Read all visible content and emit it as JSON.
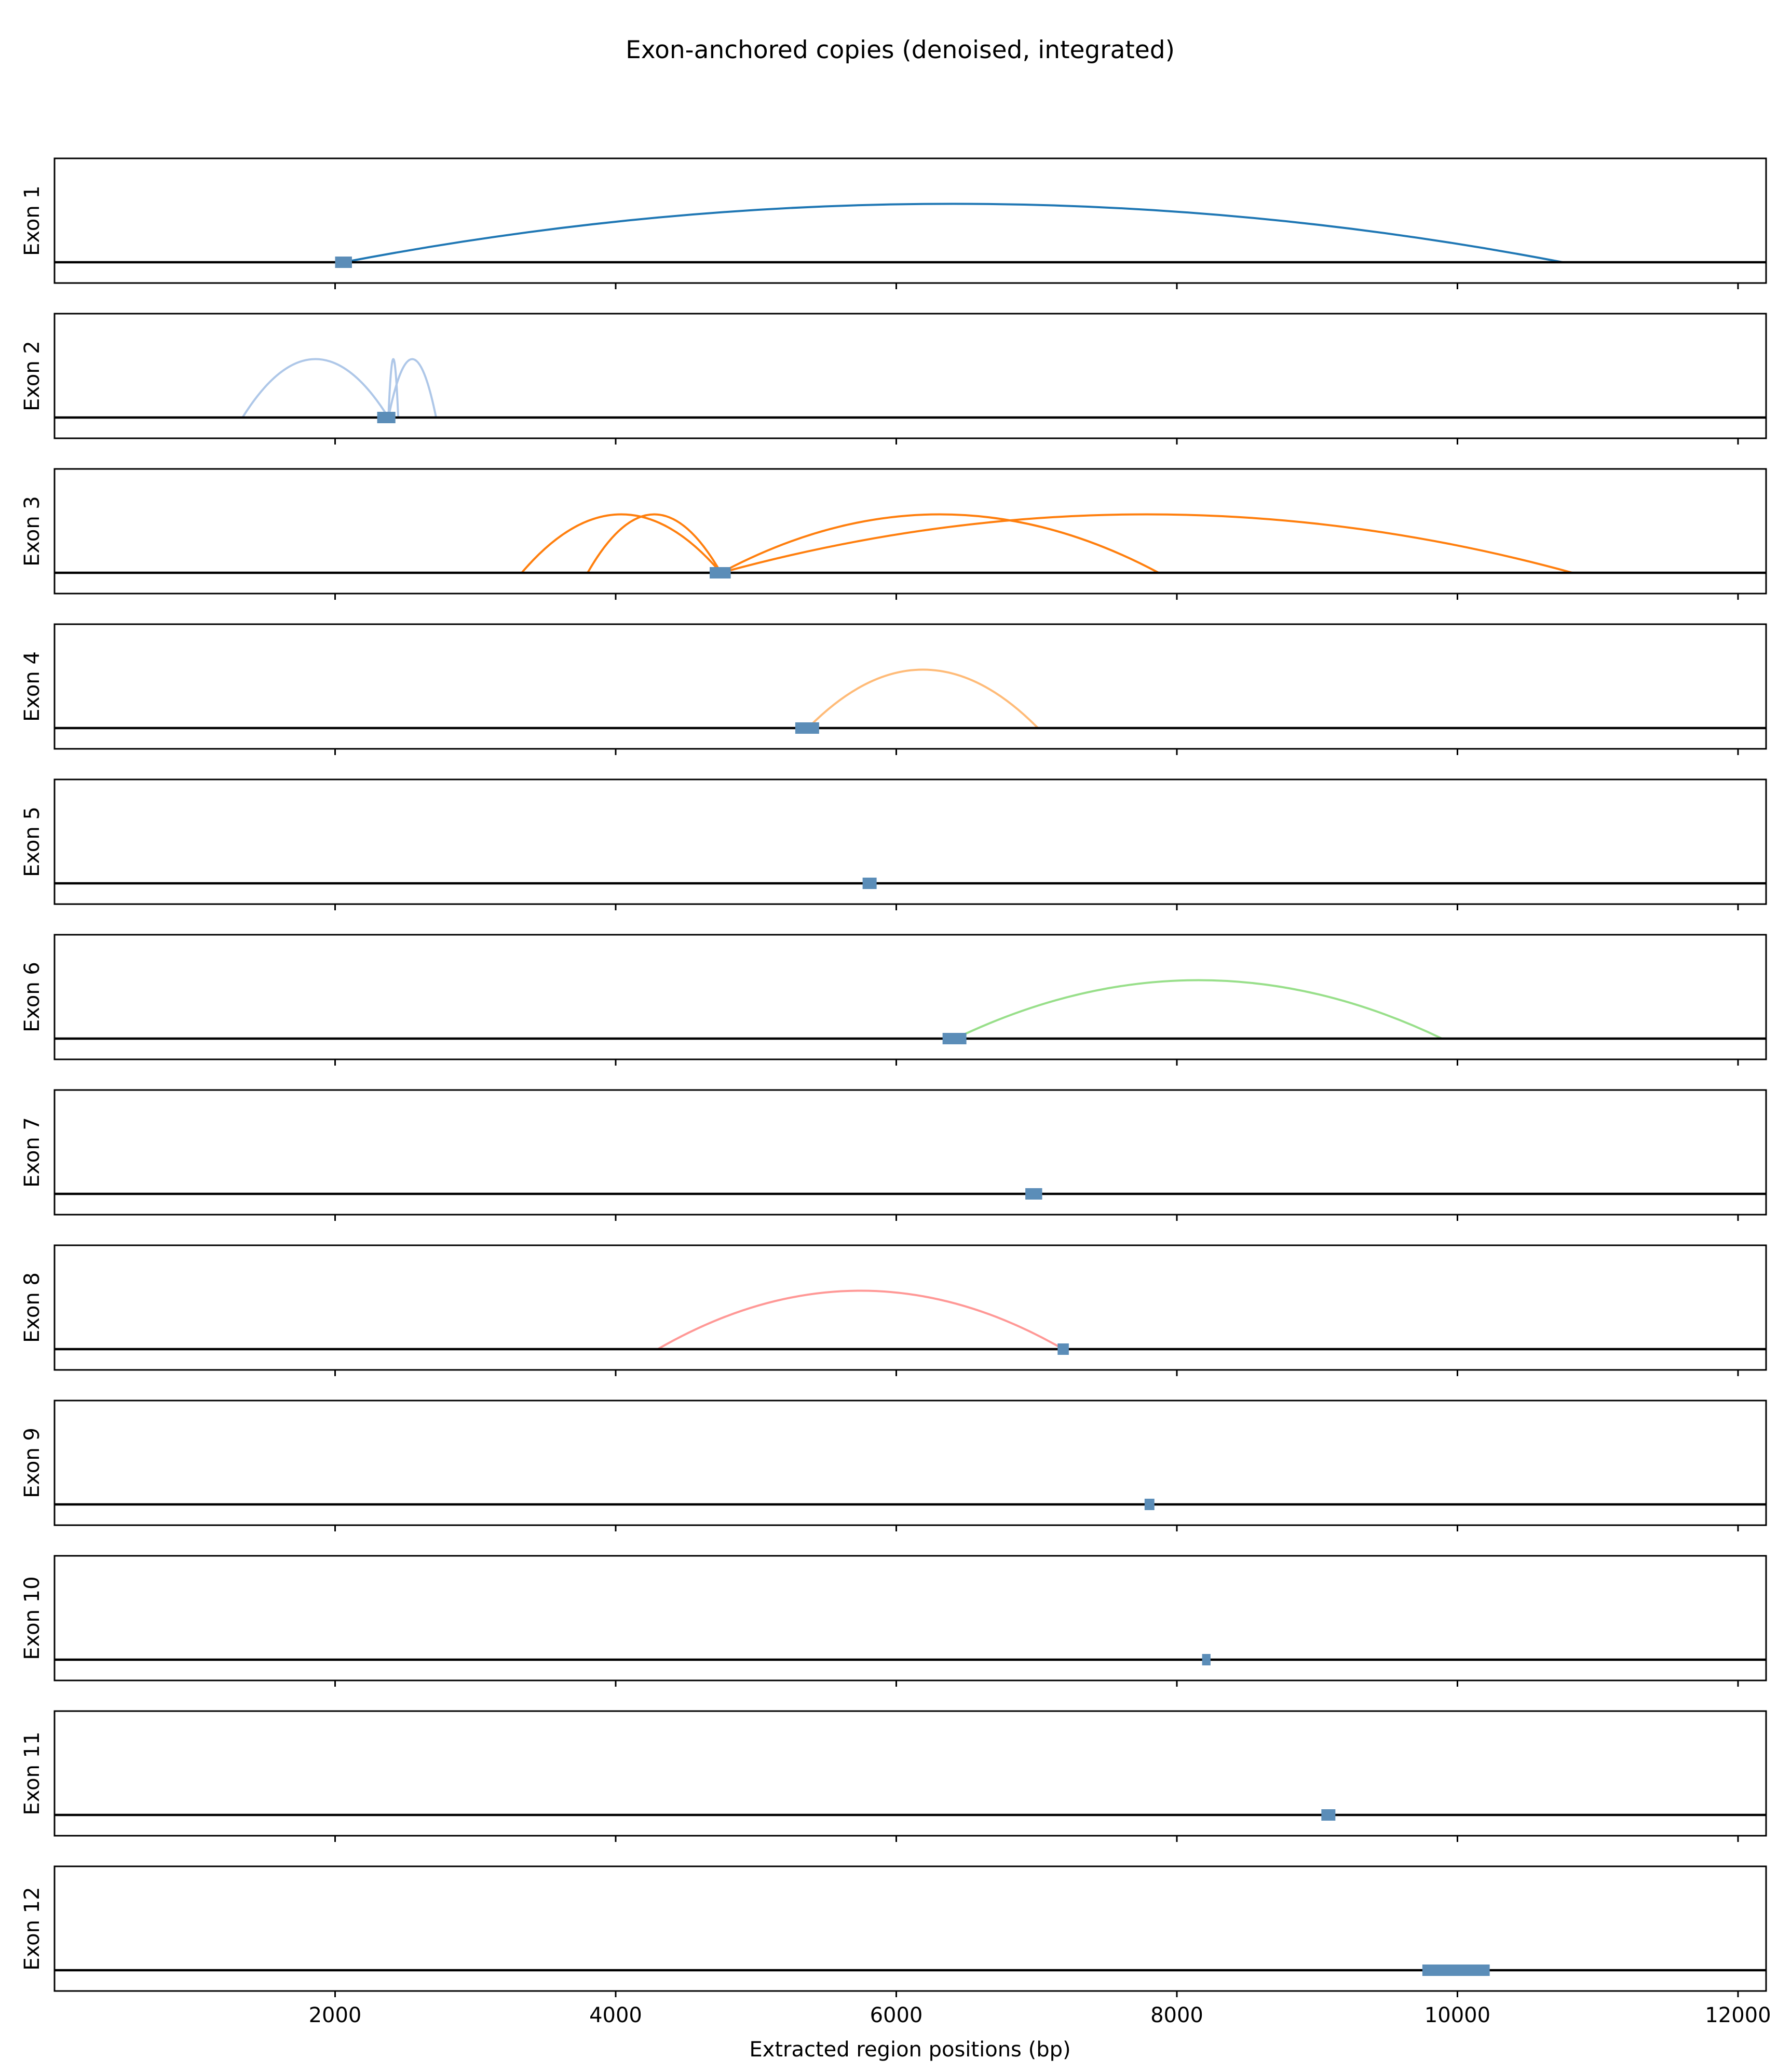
{
  "chart_data": {
    "type": "arc-track",
    "title": "Exon-anchored copies (denoised, integrated)",
    "xlabel": "Extracted region positions (bp)",
    "xlim": [
      0,
      12200
    ],
    "xticks": [
      2000,
      4000,
      6000,
      8000,
      10000,
      12000
    ],
    "tick_labels": [
      "2000",
      "4000",
      "6000",
      "8000",
      "10000",
      "12000"
    ],
    "panels": [
      {
        "label": "Exon 1",
        "anchor": [
          2000,
          2120
        ],
        "color": "#1f77b4",
        "arcs": [
          {
            "from": 2060,
            "to": 10750,
            "height": 0.75
          }
        ]
      },
      {
        "label": "Exon 2",
        "anchor": [
          2300,
          2430
        ],
        "color": "#aec7e8",
        "arcs": [
          {
            "from": 1340,
            "to": 2380,
            "height": 0.75
          },
          {
            "from": 2380,
            "to": 2450,
            "height": 0.75
          },
          {
            "from": 2380,
            "to": 2720,
            "height": 0.75
          }
        ]
      },
      {
        "label": "Exon 3",
        "anchor": [
          4670,
          4820
        ],
        "color": "#ff7f0e",
        "arcs": [
          {
            "from": 3330,
            "to": 4750,
            "height": 0.75
          },
          {
            "from": 3800,
            "to": 4750,
            "height": 0.75
          },
          {
            "from": 4750,
            "to": 7870,
            "height": 0.75
          },
          {
            "from": 4750,
            "to": 10820,
            "height": 0.75
          }
        ]
      },
      {
        "label": "Exon 4",
        "anchor": [
          5280,
          5450
        ],
        "color": "#ffbb78",
        "arcs": [
          {
            "from": 5370,
            "to": 7010,
            "height": 0.75
          }
        ]
      },
      {
        "label": "Exon 5",
        "anchor": [
          5760,
          5860
        ],
        "color": "#2ca02c",
        "arcs": []
      },
      {
        "label": "Exon 6",
        "anchor": [
          6330,
          6500
        ],
        "color": "#98df8a",
        "arcs": [
          {
            "from": 6420,
            "to": 9890,
            "height": 0.75
          }
        ]
      },
      {
        "label": "Exon 7",
        "anchor": [
          6920,
          7040
        ],
        "color": "#d62728",
        "arcs": []
      },
      {
        "label": "Exon 8",
        "anchor": [
          7150,
          7230
        ],
        "color": "#ff9896",
        "arcs": [
          {
            "from": 4300,
            "to": 7190,
            "height": 0.75
          }
        ]
      },
      {
        "label": "Exon 9",
        "anchor": [
          7770,
          7840
        ],
        "color": "#9467bd",
        "arcs": []
      },
      {
        "label": "Exon 10",
        "anchor": [
          8180,
          8240
        ],
        "color": "#c5b0d5",
        "arcs": []
      },
      {
        "label": "Exon 11",
        "anchor": [
          9030,
          9130
        ],
        "color": "#8c564b",
        "arcs": []
      },
      {
        "label": "Exon 12",
        "anchor": [
          9750,
          10230
        ],
        "color": "#c49c94",
        "arcs": []
      }
    ]
  }
}
